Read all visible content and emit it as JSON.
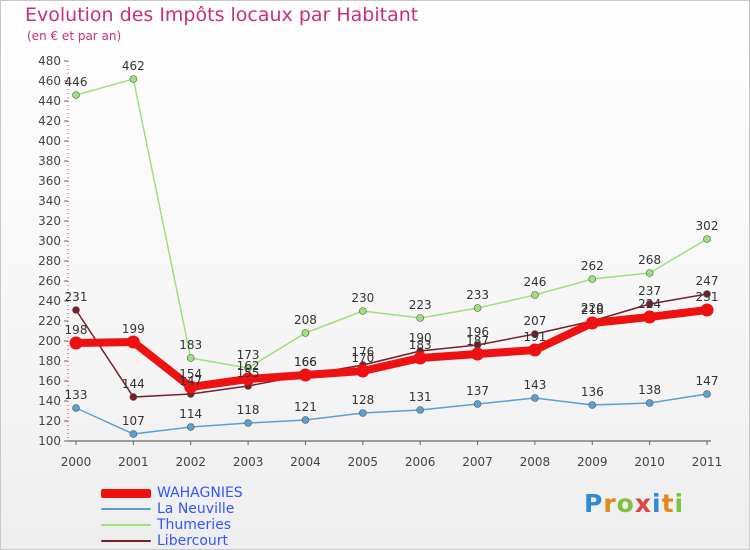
{
  "chart_data": {
    "type": "line",
    "title": "Evolution des Impôts locaux par Habitant",
    "subtitle": "(en € et par an)",
    "xlabel": "",
    "ylabel": "",
    "ylim": [
      100,
      480
    ],
    "yticks": [
      100,
      120,
      140,
      160,
      180,
      200,
      220,
      240,
      260,
      280,
      300,
      320,
      340,
      360,
      380,
      400,
      420,
      440,
      460,
      480
    ],
    "categories": [
      "2000",
      "2001",
      "2002",
      "2003",
      "2004",
      "2005",
      "2006",
      "2007",
      "2008",
      "2009",
      "2010",
      "2011"
    ],
    "series": [
      {
        "name": "WAHAGNIES",
        "color": "#ee1111",
        "emphasis": true,
        "values": [
          198,
          199,
          154,
          162,
          166,
          170,
          183,
          187,
          191,
          218,
          224,
          231
        ]
      },
      {
        "name": "La Neuville",
        "color": "#5c9fd1",
        "values": [
          133,
          107,
          114,
          118,
          121,
          128,
          131,
          137,
          143,
          136,
          138,
          147
        ]
      },
      {
        "name": "Thumeries",
        "color": "#9ee07c",
        "values": [
          446,
          462,
          183,
          173,
          208,
          230,
          223,
          233,
          246,
          262,
          268,
          302
        ]
      },
      {
        "name": "Libercourt",
        "color": "#7a1e2c",
        "values": [
          231,
          144,
          147,
          155,
          166,
          176,
          190,
          196,
          207,
          220,
          237,
          247
        ]
      }
    ],
    "legend_position": "bottom-left",
    "grid": false
  },
  "logo": {
    "letters": [
      "P",
      "r",
      "o",
      "x",
      "i",
      "t",
      "i"
    ],
    "colors": [
      "#2e8bd6",
      "#e08a1e",
      "#7ec242",
      "#e04444",
      "#2e8bd6",
      "#e08a1e",
      "#7ec242"
    ]
  }
}
